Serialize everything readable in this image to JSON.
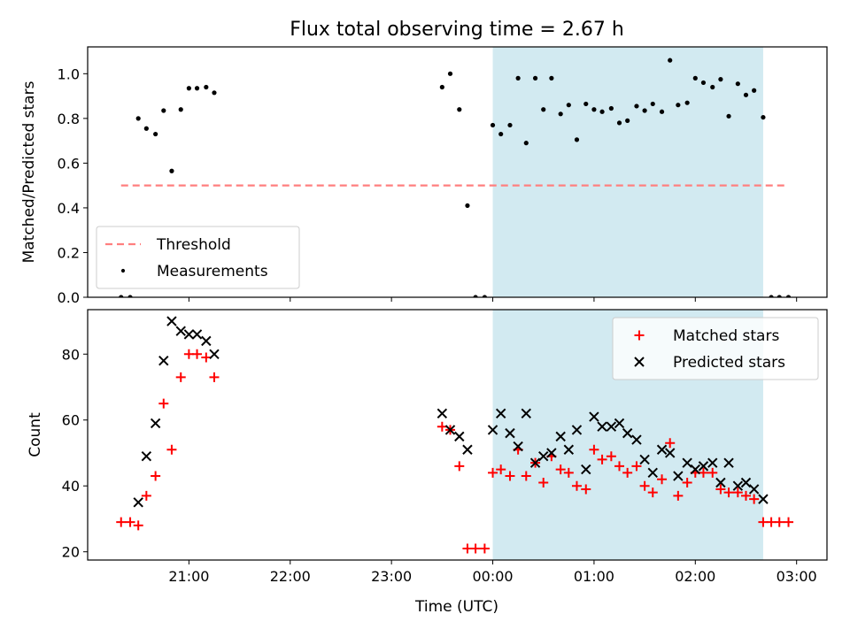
{
  "chart_data": {
    "type": "scatter",
    "title": "Flux total observing time = 2.67 h",
    "xlabel": "Time (UTC)",
    "x_unit": "hours (UTC, 24.0 = 00:00 next day)",
    "xlim": [
      20.0,
      27.3
    ],
    "x_ticks": [
      21,
      22,
      23,
      24,
      25,
      26,
      27
    ],
    "x_tick_labels": [
      "21:00",
      "22:00",
      "23:00",
      "00:00",
      "01:00",
      "02:00",
      "03:00"
    ],
    "observing_window": [
      24.0,
      26.67
    ],
    "observing_window_color": "#add8e6",
    "panels": [
      {
        "id": "ratio",
        "ylabel": "Matched/Predicted stars",
        "ylim": [
          0.0,
          1.12
        ],
        "y_ticks": [
          0.0,
          0.2,
          0.4,
          0.6,
          0.8,
          1.0
        ],
        "y_tick_labels": [
          "0.0",
          "0.2",
          "0.4",
          "0.6",
          "0.8",
          "1.0"
        ],
        "legend_position": "lower-left",
        "series": [
          {
            "name": "Threshold",
            "kind": "line",
            "color": "#ff7f7f",
            "x": [
              20.33,
              26.92
            ],
            "y": [
              0.5,
              0.5
            ]
          },
          {
            "name": "Measurements",
            "kind": "dot",
            "color": "#000000",
            "x": [
              20.33,
              20.42,
              20.5,
              20.58,
              20.67,
              20.75,
              20.83,
              20.92,
              21.0,
              21.08,
              21.17,
              21.25,
              23.5,
              23.58,
              23.67,
              23.75,
              23.83,
              23.92,
              24.0,
              24.08,
              24.17,
              24.25,
              24.33,
              24.42,
              24.5,
              24.58,
              24.67,
              24.75,
              24.83,
              24.92,
              25.0,
              25.08,
              25.17,
              25.25,
              25.33,
              25.42,
              25.5,
              25.58,
              25.67,
              25.75,
              25.83,
              25.92,
              26.0,
              26.08,
              26.17,
              26.25,
              26.33,
              26.42,
              26.5,
              26.58,
              26.67,
              26.75,
              26.83,
              26.92
            ],
            "y": [
              0.0,
              0.0,
              0.8,
              0.755,
              0.73,
              0.835,
              0.565,
              0.84,
              0.935,
              0.935,
              0.94,
              0.915,
              0.94,
              1.0,
              0.84,
              0.41,
              0.0,
              0.0,
              0.77,
              0.73,
              0.77,
              0.98,
              0.69,
              0.98,
              0.84,
              0.98,
              0.82,
              0.86,
              0.705,
              0.865,
              0.84,
              0.83,
              0.845,
              0.78,
              0.79,
              0.855,
              0.835,
              0.865,
              0.83,
              1.06,
              0.86,
              0.87,
              0.98,
              0.96,
              0.94,
              0.975,
              0.81,
              0.955,
              0.905,
              0.925,
              0.805,
              0.0,
              0.0,
              0.0
            ]
          }
        ]
      },
      {
        "id": "count",
        "ylabel": "Count",
        "ylim": [
          17.5,
          93.5
        ],
        "y_ticks": [
          20,
          40,
          60,
          80
        ],
        "y_tick_labels": [
          "20",
          "40",
          "60",
          "80"
        ],
        "legend_position": "upper-right",
        "series": [
          {
            "name": "Matched stars",
            "kind": "plus",
            "color": "#ff0000",
            "x": [
              20.33,
              20.42,
              20.5,
              20.58,
              20.67,
              20.75,
              20.83,
              20.92,
              21.0,
              21.08,
              21.17,
              21.25,
              23.5,
              23.58,
              23.67,
              23.75,
              23.83,
              23.92,
              24.0,
              24.08,
              24.17,
              24.25,
              24.33,
              24.42,
              24.5,
              24.58,
              24.67,
              24.75,
              24.83,
              24.92,
              25.0,
              25.08,
              25.17,
              25.25,
              25.33,
              25.42,
              25.5,
              25.58,
              25.67,
              25.75,
              25.83,
              25.92,
              26.0,
              26.08,
              26.17,
              26.25,
              26.33,
              26.42,
              26.5,
              26.58,
              26.67,
              26.75,
              26.83,
              26.92
            ],
            "y": [
              29,
              29,
              28,
              37,
              43,
              65,
              51,
              73,
              80,
              80,
              79,
              73,
              58,
              57,
              46,
              21,
              21,
              21,
              44,
              45,
              43,
              51,
              43,
              47,
              41,
              49,
              45,
              44,
              40,
              39,
              51,
              48,
              49,
              46,
              44,
              46,
              40,
              38,
              42,
              53,
              37,
              41,
              44,
              44,
              44,
              39,
              38,
              38,
              37,
              36,
              29,
              29,
              29,
              29
            ]
          },
          {
            "name": "Predicted stars",
            "kind": "cross",
            "color": "#000000",
            "x": [
              20.5,
              20.58,
              20.67,
              20.75,
              20.83,
              20.92,
              21.0,
              21.08,
              21.17,
              21.25,
              23.5,
              23.58,
              23.67,
              23.75,
              24.0,
              24.08,
              24.17,
              24.25,
              24.33,
              24.42,
              24.5,
              24.58,
              24.67,
              24.75,
              24.83,
              24.92,
              25.0,
              25.08,
              25.17,
              25.25,
              25.33,
              25.42,
              25.5,
              25.58,
              25.67,
              25.75,
              25.83,
              25.92,
              26.0,
              26.08,
              26.17,
              26.25,
              26.33,
              26.42,
              26.5,
              26.58,
              26.67
            ],
            "y": [
              35,
              49,
              59,
              78,
              90,
              87,
              86,
              86,
              84,
              80,
              62,
              57,
              55,
              51,
              57,
              62,
              56,
              52,
              62,
              47,
              49,
              50,
              55,
              51,
              57,
              45,
              61,
              58,
              58,
              59,
              56,
              54,
              48,
              44,
              51,
              50,
              43,
              47,
              45,
              46,
              47,
              41,
              47,
              40,
              41,
              39,
              36
            ]
          }
        ]
      }
    ]
  }
}
